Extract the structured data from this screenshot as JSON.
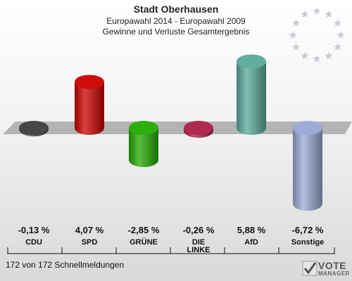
{
  "header": {
    "title": "Stadt Oberhausen",
    "subtitle": "Europawahl 2014 - Europawahl 2009",
    "subtitle2": "Gewinne und Verluste Gesamtergebnis"
  },
  "footer": {
    "status": "172 von 172 Schnellmeldungen"
  },
  "logo": {
    "line1": "VOTE",
    "line2": "MANAGER"
  },
  "colors": {
    "CDU": "#3d3d3d",
    "SPD": "#cc0000",
    "GRÜNE": "#22aa00",
    "DIE LINKE": "#aa1f4a",
    "AfD": "#5aaa99",
    "Sonstige": "#98a8d4"
  },
  "chart_data": {
    "type": "bar",
    "title": "Stadt Oberhausen",
    "subtitle": "Europawahl 2014 - Europawahl 2009 / Gewinne und Verluste Gesamtergebnis",
    "categories": [
      "CDU",
      "SPD",
      "GRÜNE",
      "DIE LINKE",
      "AfD",
      "Sonstige"
    ],
    "category_labels": [
      "CDU",
      "SPD",
      "GRÜNE",
      "DIE\nLINKE",
      "AfD",
      "Sonstige"
    ],
    "values": [
      -0.13,
      4.07,
      -2.85,
      -0.26,
      5.88,
      -6.72
    ],
    "value_labels": [
      "-0,13 %",
      "4,07 %",
      "-2,85 %",
      "-0,26 %",
      "5,88 %",
      "-6,72 %"
    ],
    "unit": "%",
    "ylim": [
      -6.72,
      5.88
    ],
    "grid": false,
    "legend": "none"
  }
}
